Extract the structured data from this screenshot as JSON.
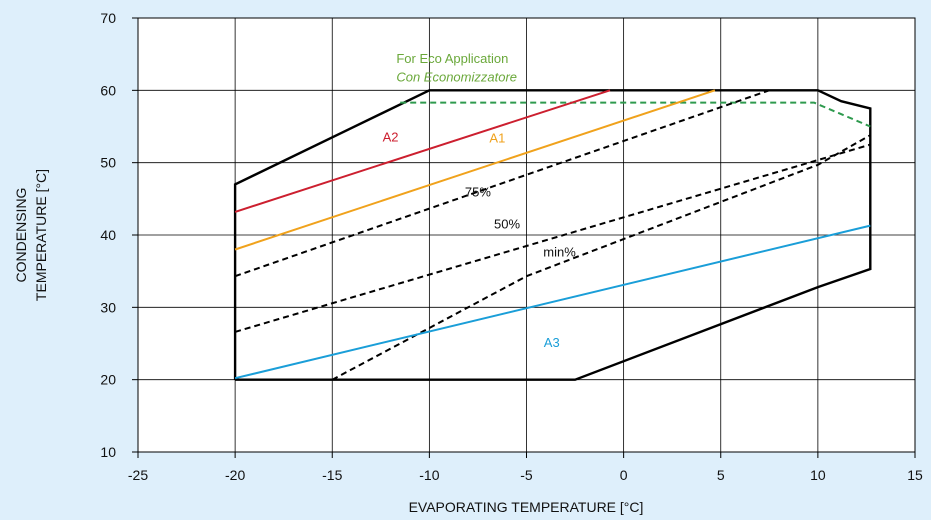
{
  "chart_data": {
    "type": "line",
    "title": "",
    "xlabel": "EVAPORATING TEMPERATURE [°C]",
    "ylabel_lines": [
      "CONDENSING",
      "TEMPERATURE [°C]"
    ],
    "xlim": [
      -25,
      15
    ],
    "ylim": [
      10,
      70
    ],
    "xticks": [
      -25,
      -20,
      -15,
      -10,
      -5,
      0,
      5,
      10,
      15
    ],
    "yticks": [
      10,
      20,
      30,
      40,
      50,
      60,
      70
    ],
    "grid": true,
    "annotations": [
      {
        "text": "For Eco Application",
        "x": -11.7,
        "y": 63.8,
        "italic": false
      },
      {
        "text": "Con Economizzatore",
        "x": -11.7,
        "y": 61.2,
        "italic": true
      }
    ],
    "series": [
      {
        "name": "envelope",
        "color": "#000000",
        "dash": "solid",
        "width": 2.4,
        "points": [
          [
            -20,
            20
          ],
          [
            -2.5,
            20
          ],
          [
            10,
            32.8
          ],
          [
            12.7,
            35.3
          ],
          [
            12.7,
            57.5
          ],
          [
            11.2,
            58.5
          ],
          [
            10,
            60
          ],
          [
            -10,
            60
          ],
          [
            -20,
            47
          ],
          [
            -20,
            20
          ]
        ]
      },
      {
        "name": "eco envelope",
        "color": "#2e9a4e",
        "dash": "dashed",
        "width": 2,
        "points": [
          [
            -11.5,
            58.3
          ],
          [
            9.8,
            58.3
          ],
          [
            12.7,
            55
          ]
        ]
      },
      {
        "name": "A2",
        "label": "A2",
        "color": "#cc1f2f",
        "dash": "solid",
        "width": 2,
        "points": [
          [
            -20,
            43.2
          ],
          [
            -0.7,
            60
          ]
        ],
        "label_at": [
          -12,
          52.9
        ]
      },
      {
        "name": "A1",
        "label": "A1",
        "color": "#f0a21c",
        "dash": "solid",
        "width": 2,
        "points": [
          [
            -20,
            38
          ],
          [
            4.7,
            60
          ]
        ],
        "label_at": [
          -6.5,
          52.8
        ]
      },
      {
        "name": "75%",
        "label": "75%",
        "color": "#000000",
        "dash": "dashed",
        "width": 2,
        "points": [
          [
            -20,
            34.3
          ],
          [
            7.5,
            60
          ]
        ],
        "label_at": [
          -7.5,
          45.3
        ]
      },
      {
        "name": "50%",
        "label": "50%",
        "color": "#000000",
        "dash": "dashed",
        "width": 2,
        "points": [
          [
            -20,
            26.6
          ],
          [
            12.7,
            52.5
          ]
        ],
        "label_at": [
          -6,
          40.9
        ]
      },
      {
        "name": "min%",
        "label": "min%",
        "color": "#000000",
        "dash": "dashed",
        "width": 2,
        "points": [
          [
            -15,
            20
          ],
          [
            -5,
            34.3
          ],
          [
            10,
            49.7
          ],
          [
            12.7,
            53.8
          ]
        ],
        "label_at": [
          -3.3,
          37
        ]
      },
      {
        "name": "A3",
        "label": "A3",
        "color": "#1a9ed8",
        "dash": "solid",
        "width": 2,
        "points": [
          [
            -20,
            20.2
          ],
          [
            12.7,
            41.3
          ]
        ],
        "label_at": [
          -3.7,
          24.5
        ]
      }
    ]
  }
}
